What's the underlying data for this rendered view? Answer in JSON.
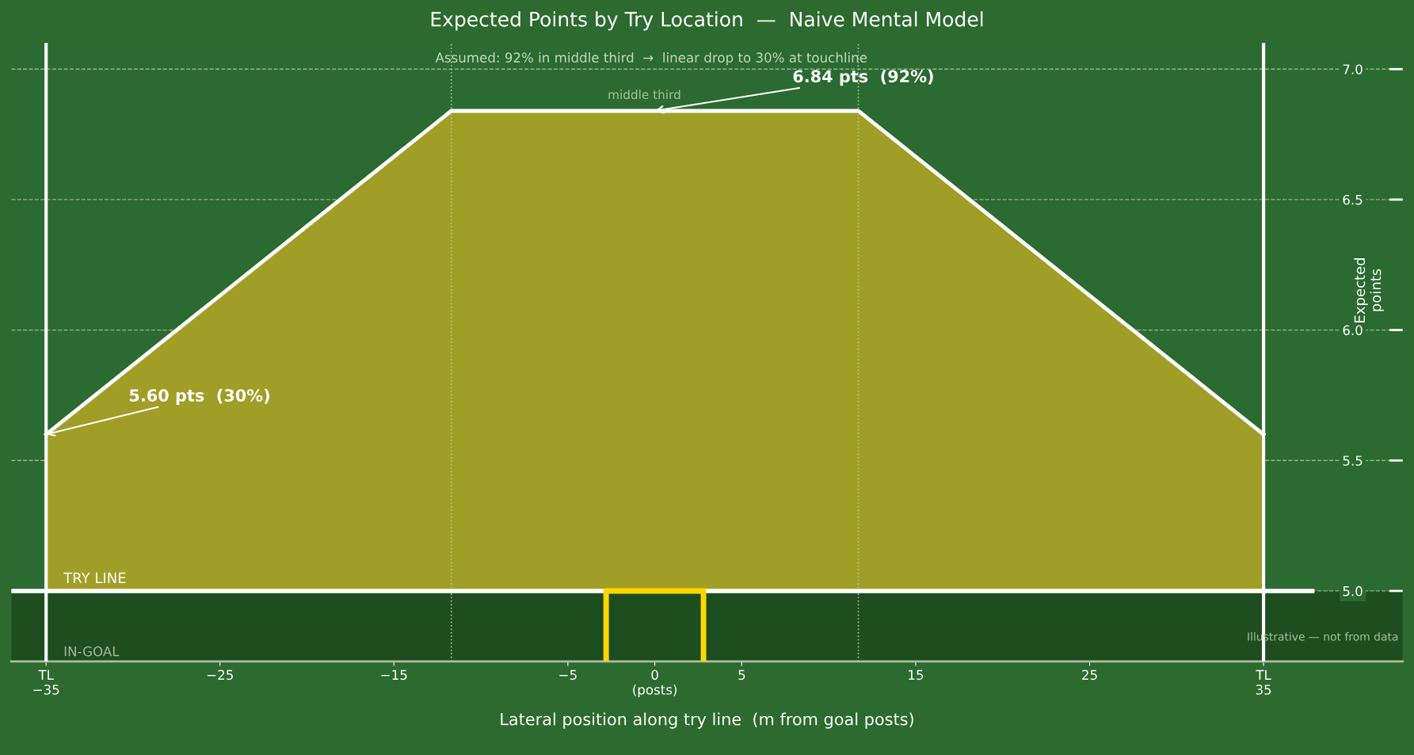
{
  "chart_data": {
    "type": "area",
    "title": "Expected Points by Try Location  —  Naive Mental Model",
    "xlabel": "Lateral position along try line  (m from goal posts)",
    "ylabel": "Expected\npoints",
    "series": [
      {
        "color": "#a09e26",
        "x": [
          -35,
          -11.7,
          11.7,
          35
        ],
        "values": [
          5.6,
          6.84,
          6.84,
          5.6
        ]
      }
    ],
    "xlim": [
      -37,
      43
    ],
    "ylim": [
      4.73,
      7.1
    ],
    "xticks": [
      {
        "value": -35,
        "label": "TL\n−35"
      },
      {
        "value": -25,
        "label": "−25"
      },
      {
        "value": -15,
        "label": "−15"
      },
      {
        "value": -5,
        "label": "−5"
      },
      {
        "value": 0,
        "label": "0\n(posts)"
      },
      5,
      15,
      25,
      {
        "value": 35,
        "label": "TL\n35"
      }
    ],
    "yticks": [
      {
        "value": 5.0,
        "label": "5.0"
      },
      5.5,
      {
        "value": 6.0,
        "label": "6.0"
      },
      6.5,
      {
        "value": 7.0,
        "label": "7.0"
      }
    ],
    "grid": "y",
    "ref_lines": [
      {
        "axis": "y",
        "value": 5.0,
        "label": "TRY LINE",
        "color": "#ffffff",
        "line_style": "solid"
      },
      {
        "axis": "x",
        "value": -35,
        "color": "#ffffff",
        "line_style": "solid"
      },
      {
        "axis": "x",
        "value": 35,
        "color": "#ffffff",
        "line_style": "solid"
      },
      {
        "axis": "x",
        "value": -11.7,
        "color": "#a8c8a0",
        "line_style": "dotted"
      },
      {
        "axis": "x",
        "value": 11.7,
        "color": "#a8c8a0",
        "line_style": "dotted"
      }
    ],
    "bands": [
      {
        "axis": "y",
        "from": 4.73,
        "to": 5.0,
        "label": "IN-GOAL",
        "color": "#1e4d20"
      }
    ],
    "annotations": [
      "Assumed: 92% in middle third  →  linear drop to 30% at touchline",
      "middle third",
      {
        "text": "6.84 pts  (92%)",
        "x": 0,
        "y": 6.84
      },
      {
        "text": "5.60 pts  (30%)",
        "x": -35,
        "y": 5.6
      },
      "Illustrative — not from data"
    ]
  }
}
